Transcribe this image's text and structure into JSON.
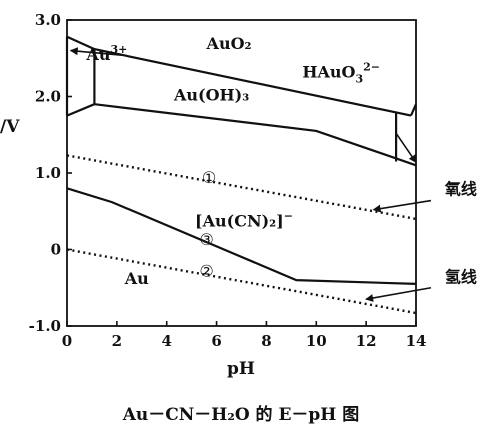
{
  "chart_data": {
    "type": "line",
    "caption": "Au－CN－H₂O 的 E－pH 图",
    "xlabel": "pH",
    "ylabel": "/V",
    "xlim": [
      0,
      14
    ],
    "ylim": [
      -1.0,
      3.0
    ],
    "xticks": [
      "0",
      "2",
      "4",
      "6",
      "8",
      "10",
      "12",
      "14"
    ],
    "yticks": [
      "3.0",
      "2.0",
      "1.0",
      "0",
      "-1.0"
    ],
    "series": [
      {
        "id": "au3-top",
        "style": "solid",
        "points": [
          [
            0,
            2.78
          ],
          [
            1.1,
            2.62
          ]
        ]
      },
      {
        "id": "auoh3-top",
        "style": "solid",
        "points": [
          [
            1.1,
            2.62
          ],
          [
            13.8,
            1.75
          ]
        ]
      },
      {
        "id": "au3-bottom",
        "style": "solid",
        "points": [
          [
            0,
            1.75
          ],
          [
            1.1,
            1.9
          ]
        ]
      },
      {
        "id": "auoh3-bottom",
        "style": "solid",
        "points": [
          [
            1.1,
            1.9
          ],
          [
            10.0,
            1.55
          ],
          [
            14,
            1.1
          ]
        ]
      },
      {
        "id": "au3-auoh3-boundary",
        "style": "solid",
        "points": [
          [
            1.1,
            2.62
          ],
          [
            1.1,
            1.9
          ]
        ]
      },
      {
        "id": "auoh3-hauo3-boundary",
        "style": "solid",
        "points": [
          [
            13.2,
            1.8
          ],
          [
            13.2,
            1.15
          ]
        ]
      },
      {
        "id": "hauo3-top",
        "style": "solid",
        "points": [
          [
            13.8,
            1.75
          ],
          [
            14,
            1.9
          ]
        ]
      },
      {
        "id": "au3-left",
        "style": "solid",
        "points": [
          [
            0,
            1.75
          ],
          [
            0,
            2.78
          ]
        ]
      },
      {
        "id": "line-1-oxygen",
        "style": "dotted",
        "points": [
          [
            0,
            1.23
          ],
          [
            14,
            0.4
          ]
        ]
      },
      {
        "id": "line-3-gold-cyanide",
        "style": "solid",
        "points": [
          [
            0,
            0.8
          ],
          [
            1.8,
            0.62
          ],
          [
            9.2,
            -0.4
          ],
          [
            14,
            -0.45
          ]
        ]
      },
      {
        "id": "line-2-hydrogen",
        "style": "dotted",
        "points": [
          [
            0,
            0.0
          ],
          [
            14,
            -0.83
          ]
        ]
      }
    ],
    "region_labels": [
      {
        "text": "AuO₂",
        "x": 6.5,
        "y": 2.62
      },
      {
        "text": "Au",
        "x": 1.6,
        "y": 2.48,
        "sup": "3+"
      },
      {
        "text": "Au(OH)₃",
        "x": 5.8,
        "y": 1.95
      },
      {
        "text": "HAuO",
        "x": 11.0,
        "y": 2.25,
        "sub": "3",
        "sup": "2−"
      },
      {
        "text": "[Au(CN)₂]",
        "x": 7.1,
        "y": 0.3,
        "sup": "−"
      },
      {
        "text": "Au",
        "x": 2.8,
        "y": -0.45
      }
    ],
    "line_labels": [
      {
        "text": "①",
        "x": 5.7,
        "y": 0.87
      },
      {
        "text": "③",
        "x": 5.6,
        "y": 0.06
      },
      {
        "text": "②",
        "x": 5.6,
        "y": -0.35
      }
    ],
    "annotations": [
      {
        "text": "氧线",
        "x": 15.8,
        "y": 0.72
      },
      {
        "text": "氢线",
        "x": 15.8,
        "y": -0.43
      }
    ]
  }
}
